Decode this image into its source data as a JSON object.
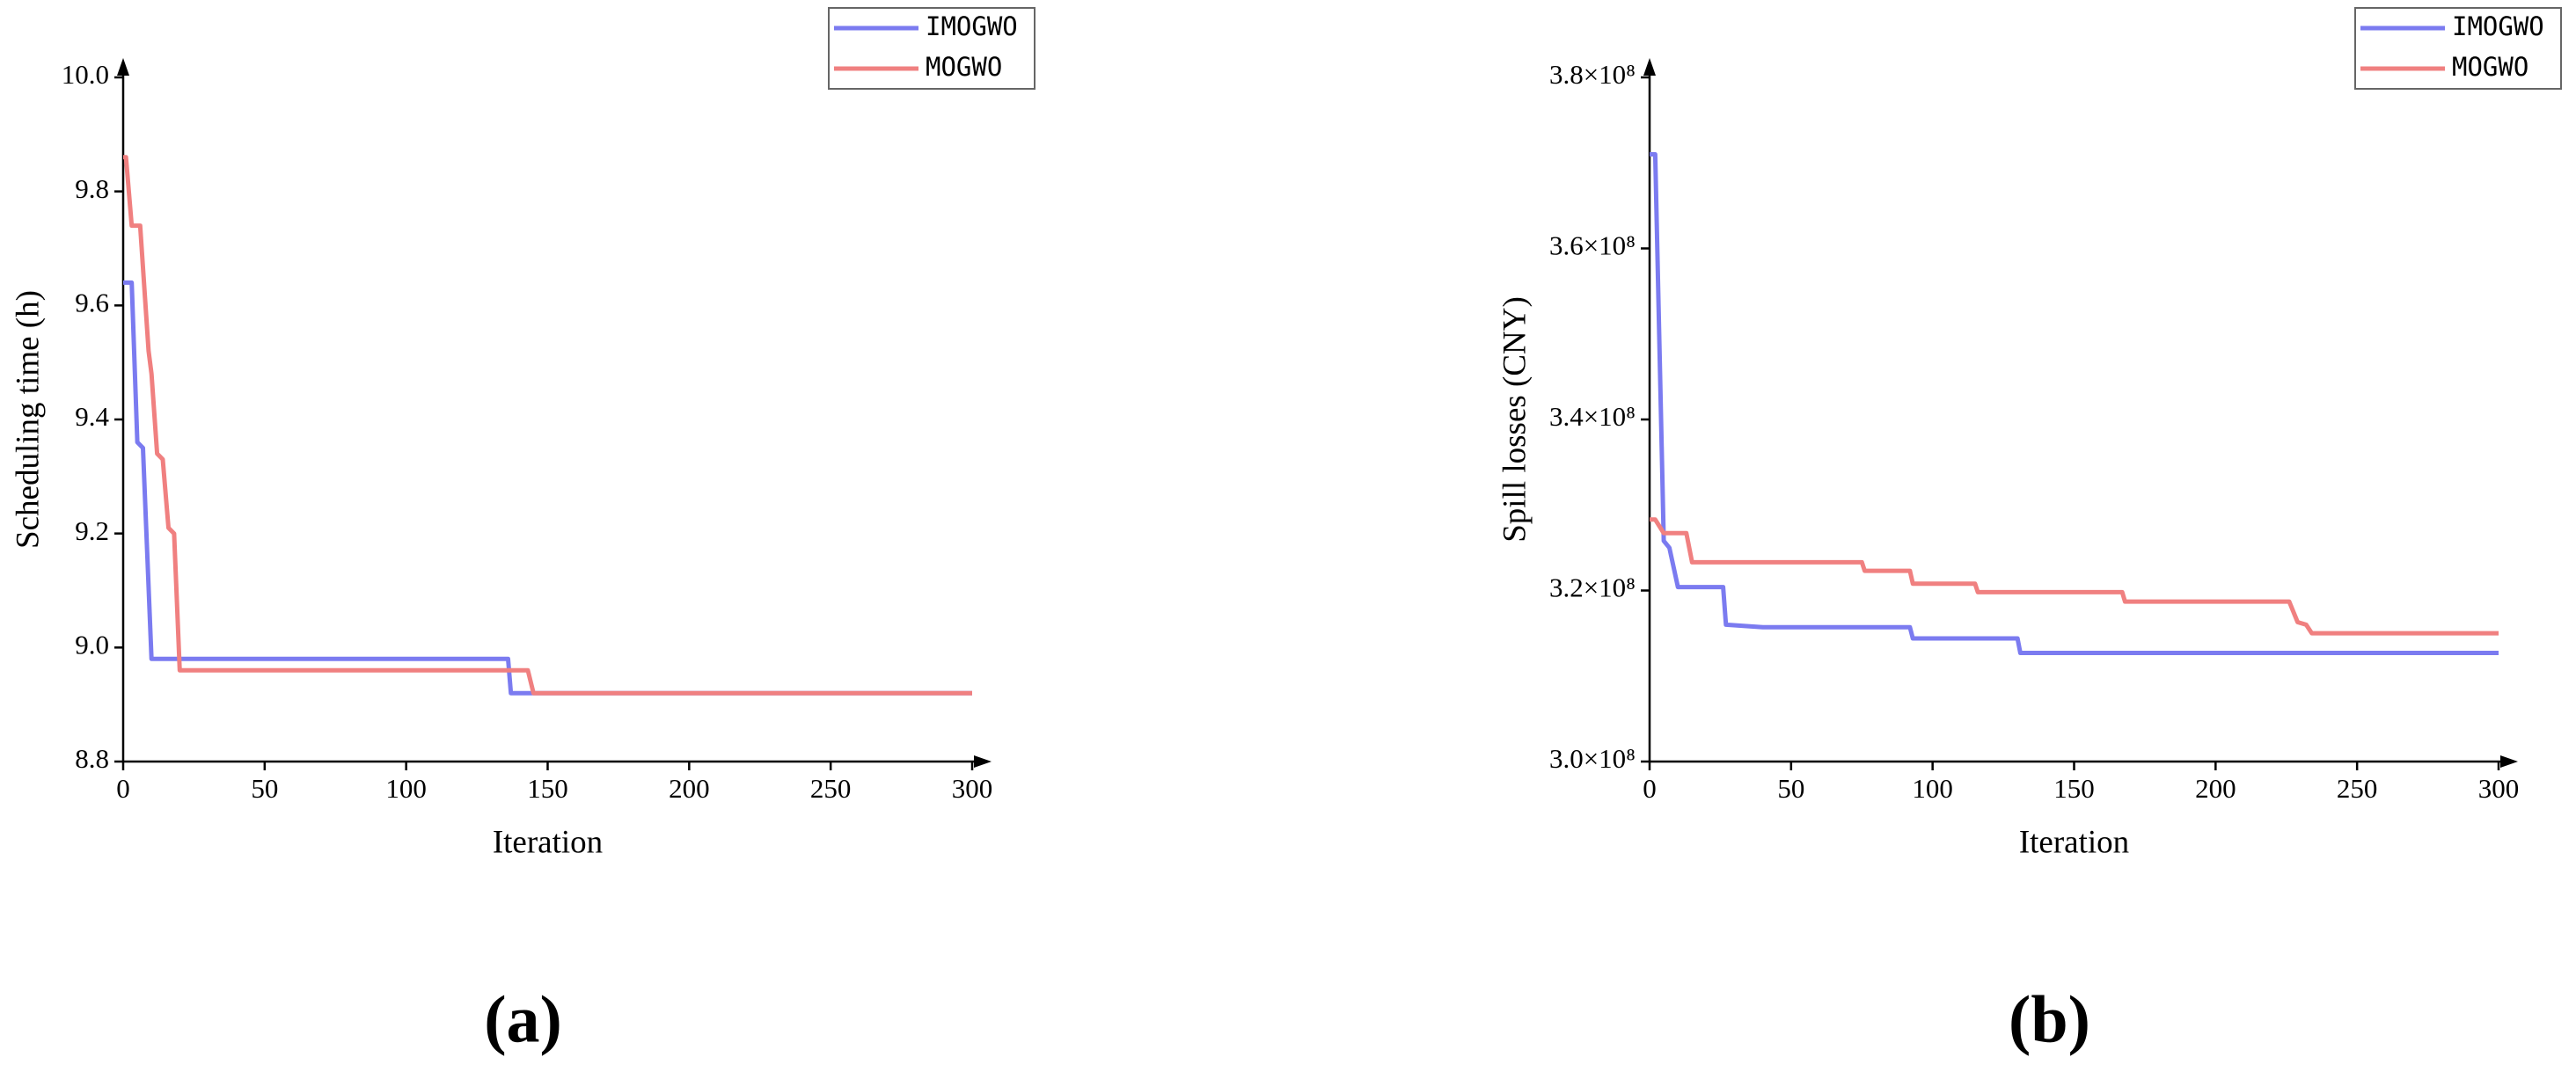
{
  "chart_data": [
    {
      "type": "line",
      "panel_label": "(a)",
      "x_label": "Iteration",
      "y_label": "Scheduling time (h)",
      "xlim": [
        0,
        300
      ],
      "xticks": [
        0,
        50,
        100,
        150,
        200,
        250,
        300
      ],
      "ylim": [
        8.8,
        10.0
      ],
      "yticks": [
        8.8,
        {
          "value": 9,
          "label": "9.0"
        },
        9.2,
        9.4,
        9.6,
        9.8,
        {
          "value": 10,
          "label": "10.0"
        }
      ],
      "legend": "upper right",
      "series": [
        {
          "name": "IMOGWO",
          "color": "#7b7bf0",
          "x": [
            0,
            3,
            5,
            7,
            10,
            136,
            137,
            300
          ],
          "values": [
            9.64,
            9.64,
            9.36,
            9.35,
            8.98,
            8.98,
            8.92,
            8.92
          ]
        },
        {
          "name": "MOGWO",
          "color": "#f08080",
          "x": [
            0,
            1,
            3,
            6,
            9,
            10,
            12,
            14,
            16,
            18,
            20,
            143,
            145,
            300
          ],
          "values": [
            9.86,
            9.86,
            9.74,
            9.74,
            9.52,
            9.48,
            9.34,
            9.33,
            9.21,
            9.2,
            8.96,
            8.96,
            8.92,
            8.92
          ]
        }
      ]
    },
    {
      "type": "line",
      "panel_label": "(b)",
      "x_label": "Iteration",
      "y_label": "Spill losses (CNY)",
      "xlim": [
        0,
        300
      ],
      "xticks": [
        0,
        50,
        100,
        150,
        200,
        250,
        300
      ],
      "ylim": [
        300000000,
        380000000
      ],
      "yticks": [
        {
          "value": 300000000,
          "label": "3.0×10⁸"
        },
        {
          "value": 320000000,
          "label": "3.2×10⁸"
        },
        {
          "value": 340000000,
          "label": "3.4×10⁸"
        },
        {
          "value": 360000000,
          "label": "3.6×10⁸"
        },
        {
          "value": 380000000,
          "label": "3.8×10⁸"
        }
      ],
      "legend": "upper right",
      "series": [
        {
          "name": "IMOGWO",
          "color": "#7b7bf0",
          "x": [
            0,
            2,
            5,
            7,
            10,
            26,
            27,
            40,
            92,
            93,
            130,
            131,
            300
          ],
          "values": [
            371000000,
            371000000,
            325800000,
            325000000,
            320400000,
            320400000,
            316000000,
            315700000,
            315700000,
            314400000,
            314400000,
            312700000,
            312700000
          ]
        },
        {
          "name": "MOGWO",
          "color": "#f08080",
          "x": [
            0,
            2,
            5,
            13,
            15,
            75,
            76,
            92,
            93,
            115,
            116,
            167,
            168,
            226,
            229,
            232,
            234,
            300
          ],
          "values": [
            328300000,
            328300000,
            326700000,
            326700000,
            323300000,
            323300000,
            322300000,
            322300000,
            320800000,
            320800000,
            319800000,
            319800000,
            318700000,
            318700000,
            316300000,
            316000000,
            315000000,
            315000000
          ]
        }
      ]
    }
  ]
}
